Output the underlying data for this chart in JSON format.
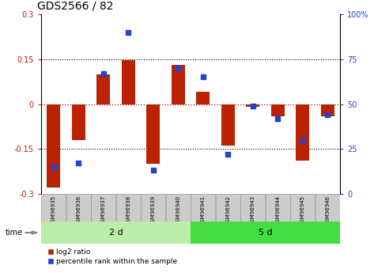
{
  "title": "GDS2566 / 82",
  "samples": [
    "GSM96935",
    "GSM96936",
    "GSM96937",
    "GSM96938",
    "GSM96939",
    "GSM96940",
    "GSM96941",
    "GSM96942",
    "GSM96943",
    "GSM96944",
    "GSM96945",
    "GSM96946"
  ],
  "log2_ratio": [
    -0.28,
    -0.12,
    0.1,
    0.148,
    -0.2,
    0.13,
    0.04,
    -0.14,
    -0.01,
    -0.04,
    -0.19,
    -0.04
  ],
  "percentile_rank": [
    15,
    17,
    67,
    90,
    13,
    70,
    65,
    22,
    49,
    42,
    30,
    44
  ],
  "group1_label": "2 d",
  "group2_label": "5 d",
  "group1_count": 6,
  "group2_count": 6,
  "ylim": [
    -0.3,
    0.3
  ],
  "yticks_left": [
    -0.3,
    -0.15,
    0,
    0.15,
    0.3
  ],
  "yticks_right": [
    0,
    25,
    50,
    75,
    100
  ],
  "bar_color": "#bb2200",
  "scatter_color": "#2244cc",
  "group_color1": "#bbeeaa",
  "group_color2": "#44dd44",
  "bg_color": "#ffffff",
  "cell_bg_color": "#cccccc",
  "bar_width": 0.55
}
